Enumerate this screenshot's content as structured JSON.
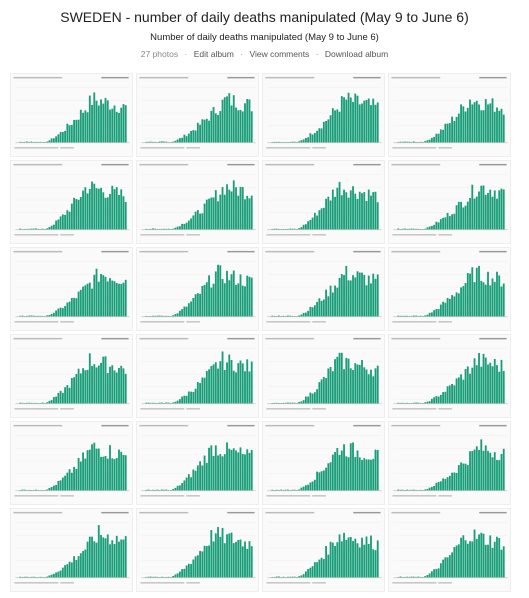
{
  "album": {
    "title": "SWEDEN - number of daily deaths manipulated (May 9 to June 6)",
    "subtitle": "Number of daily deaths manipulated (May 9 to June 6)",
    "photo_count": "27 photos",
    "actions": {
      "edit": "Edit album",
      "comments": "View comments",
      "download": "Download album"
    },
    "separator": "·"
  },
  "thumbnails": {
    "count": 24,
    "bar_color": "#1a9e7a"
  }
}
